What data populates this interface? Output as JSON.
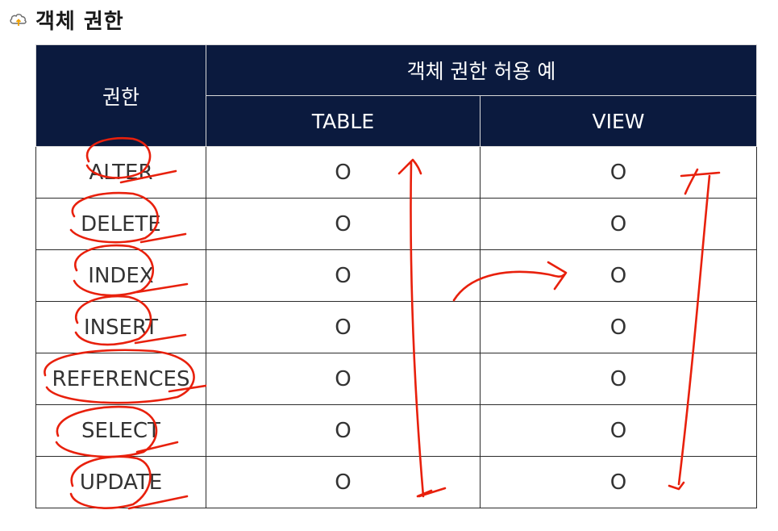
{
  "title": "객체 권한",
  "icons": {
    "title": "cloud-upload-icon"
  },
  "table": {
    "header": {
      "privilege": "권한",
      "group": "객체 권한 허용 예",
      "table_col": "TABLE",
      "view_col": "VIEW"
    },
    "rows": [
      {
        "privilege": "ALTER",
        "table": "O",
        "view": "O"
      },
      {
        "privilege": "DELETE",
        "table": "O",
        "view": "O"
      },
      {
        "privilege": "INDEX",
        "table": "O",
        "view": "O"
      },
      {
        "privilege": "INSERT",
        "table": "O",
        "view": "O"
      },
      {
        "privilege": "REFERENCES",
        "table": "O",
        "view": "O"
      },
      {
        "privilege": "SELECT",
        "table": "O",
        "view": "O"
      },
      {
        "privilege": "UPDATE",
        "table": "O",
        "view": "O"
      }
    ]
  },
  "colors": {
    "header_bg": "#0b1a3e",
    "annotation_ink": "#e8200c"
  }
}
